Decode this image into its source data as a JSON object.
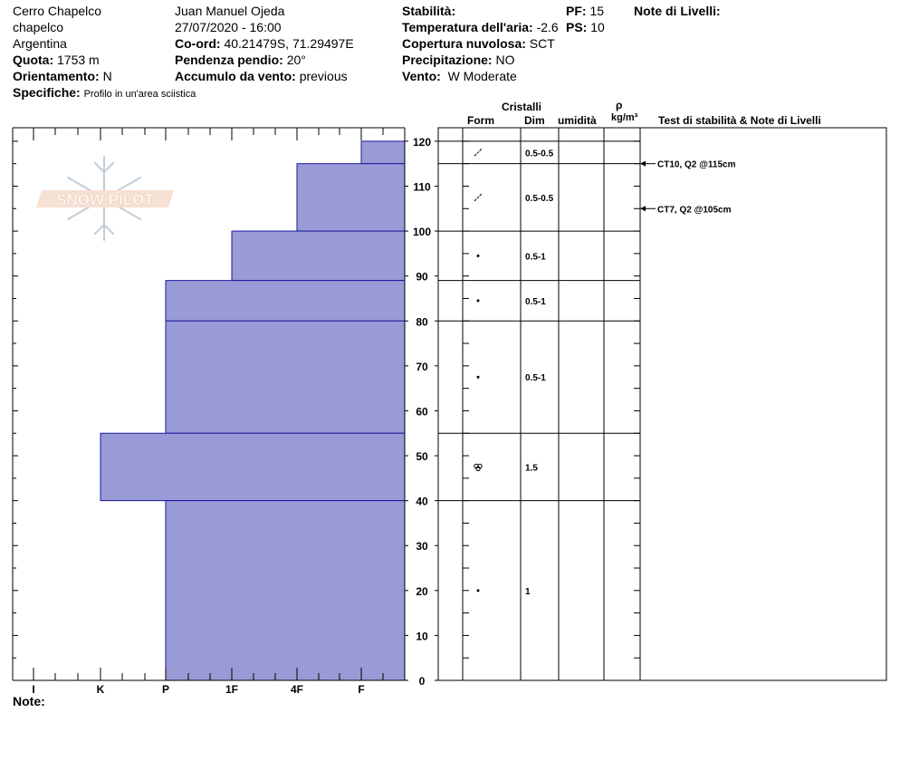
{
  "header": {
    "location": "Cerro Chapelco",
    "sublocation": "chapelco",
    "country": "Argentina",
    "elevation_label": "Quota:",
    "elevation": "1753 m",
    "aspect_label": "Orientamento:",
    "aspect": "N",
    "specifics_label": "Specifiche:",
    "specifics": "Profilo in un'area sciistica",
    "observer": "Juan Manuel Ojeda",
    "datetime": "27/07/2020 - 16:00",
    "coord_label": "Co-ord:",
    "coord": "40.21479S, 71.29497E",
    "slope_label": "Pendenza pendio:",
    "slope": "20°",
    "wind_load_label": "Accumulo da vento:",
    "wind_load": "previous",
    "stability_label": "Stabilità:",
    "air_temp_label": "Temperatura dell'aria:",
    "air_temp": "-2.6",
    "sky_label": "Copertura nuvolosa:",
    "sky": "SCT",
    "precip_label": "Precipitazione:",
    "precip": "NO",
    "wind_label": "Vento:",
    "wind": "W Moderate",
    "pf_label": "PF:",
    "pf": "15",
    "ps_label": "PS:",
    "ps": "10",
    "layer_notes_label": "Note di Livelli:",
    "notes_label": "Note:"
  },
  "columns": {
    "crystals": "Cristalli",
    "form": "Form",
    "size": "Dim",
    "moisture": "umidità",
    "rho": "ρ",
    "density_unit": "kg/m³",
    "stability_notes": "Test di stabilità & Note di Livelli"
  },
  "logo_text": "SNOW PILOT",
  "colors": {
    "layer_fill": "#9a9ad6",
    "layer_stroke": "#1a1aa0"
  },
  "chart_data": {
    "type": "bar",
    "title": "",
    "xlabel": "",
    "ylabel": "",
    "x_categories": [
      "I",
      "K",
      "P",
      "1F",
      "4F",
      "F"
    ],
    "ylim": [
      0,
      123
    ],
    "y_ticks": [
      0,
      10,
      20,
      30,
      40,
      50,
      60,
      70,
      80,
      90,
      100,
      110,
      120
    ],
    "hardness_layers": [
      {
        "bottom": 115,
        "top": 120,
        "hardness": "F"
      },
      {
        "bottom": 100,
        "top": 115,
        "hardness": "4F"
      },
      {
        "bottom": 89,
        "top": 100,
        "hardness": "1F"
      },
      {
        "bottom": 80,
        "top": 89,
        "hardness": "P"
      },
      {
        "bottom": 55,
        "top": 80,
        "hardness": "P"
      },
      {
        "bottom": 40,
        "top": 55,
        "hardness": "K"
      },
      {
        "bottom": 0,
        "top": 40,
        "hardness": "P"
      }
    ],
    "layer_boundaries": [
      0,
      40,
      55,
      80,
      89,
      100,
      115,
      120
    ],
    "crystal_layers": [
      {
        "bottom": 115,
        "top": 120,
        "form": "decomposing",
        "size": ""
      },
      {
        "bottom": 100,
        "top": 115,
        "form": "decomposing",
        "size": "0.5-0.5"
      },
      {
        "bottom": 89,
        "top": 100,
        "form": "rounded",
        "size": "0.5-1"
      },
      {
        "bottom": 80,
        "top": 89,
        "form": "rounded",
        "size": "0.5-1"
      },
      {
        "bottom": 55,
        "top": 80,
        "form": "rounded",
        "size": "0.5-1"
      },
      {
        "bottom": 40,
        "top": 55,
        "form": "melt",
        "size": "1.5"
      },
      {
        "bottom": 0,
        "top": 40,
        "form": "rounded",
        "size": "1"
      }
    ],
    "size_labels": [
      {
        "depth": 117.5,
        "text": "0.5-0.5"
      },
      {
        "depth": 107.5,
        "text": "0.5-0.5"
      },
      {
        "depth": 94.5,
        "text": "0.5-1"
      },
      {
        "depth": 84.5,
        "text": "0.5-1"
      },
      {
        "depth": 67.5,
        "text": "0.5-1"
      },
      {
        "depth": 47.5,
        "text": "1.5"
      },
      {
        "depth": 20,
        "text": "1"
      }
    ],
    "stability_tests": [
      {
        "depth": 115,
        "label": "CT10, Q2 @115cm"
      },
      {
        "depth": 105,
        "label": "CT7, Q2 @105cm"
      }
    ]
  }
}
